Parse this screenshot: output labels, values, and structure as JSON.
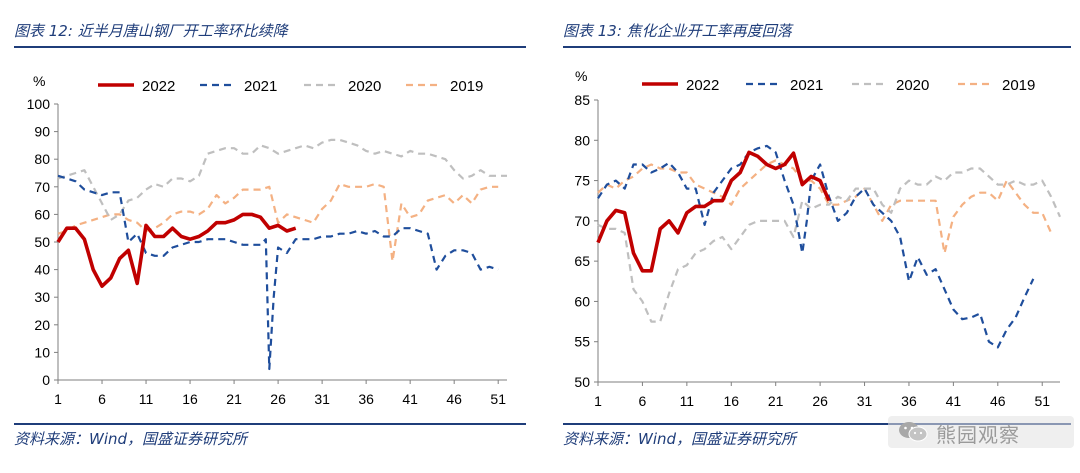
{
  "panels": [
    {
      "title": "图表 12:  近半月唐山钢厂开工率环比续降",
      "source": "资料来源：Wind，国盛证券研究所"
    },
    {
      "title": "图表 13:  焦化企业开工率再度回落",
      "source": "资料来源：Wind，国盛证券研究所"
    }
  ],
  "watermark": {
    "text": "熊园观察",
    "icon": "wechat-icon"
  },
  "colors": {
    "s2022": "#c00000",
    "s2021": "#1f4e9c",
    "s2020": "#bfbfbf",
    "s2019": "#f4b183",
    "accent": "#1f3d7a"
  },
  "chart_data": [
    {
      "type": "line",
      "ylabel": "%",
      "ylim": [
        0,
        100
      ],
      "yticks": [
        0,
        10,
        20,
        30,
        40,
        50,
        60,
        70,
        80,
        90,
        100
      ],
      "xlim": [
        1,
        52
      ],
      "xticks": [
        1,
        6,
        11,
        16,
        21,
        26,
        31,
        36,
        41,
        46,
        51
      ],
      "legend": "top",
      "series": [
        {
          "name": "2022",
          "style": "solid",
          "x": [
            1,
            2,
            3,
            4,
            5,
            6,
            7,
            8,
            9,
            10,
            11,
            12,
            13,
            14,
            15,
            16,
            17,
            18,
            19,
            20,
            21,
            22,
            23,
            24,
            25,
            26,
            27,
            28
          ],
          "values": [
            50,
            55,
            55,
            51,
            40,
            34,
            37,
            44,
            47,
            35,
            56,
            52,
            52,
            55,
            52,
            51,
            52,
            54,
            57,
            57,
            58,
            60,
            60,
            59,
            55,
            56,
            54,
            55
          ]
        },
        {
          "name": "2021",
          "style": "dashed",
          "x": [
            1,
            2,
            3,
            4,
            5,
            6,
            7,
            8,
            9,
            10,
            11,
            12,
            13,
            14,
            15,
            16,
            17,
            18,
            19,
            20,
            21,
            22,
            23,
            24,
            24.6,
            25,
            25.5,
            26,
            27,
            28,
            29,
            30,
            31,
            32,
            33,
            34,
            35,
            36,
            37,
            38,
            39,
            40,
            41,
            42,
            43,
            44,
            45,
            46,
            47,
            48,
            49,
            50,
            51
          ],
          "values": [
            74,
            73,
            72,
            69,
            68,
            67,
            68,
            68,
            50,
            53,
            46,
            45,
            45,
            48,
            49,
            50,
            50,
            51,
            51,
            51,
            50,
            49,
            49,
            49,
            51,
            4,
            30,
            48,
            46,
            51,
            51,
            51,
            52,
            52,
            53,
            53,
            54,
            53,
            54,
            52,
            52,
            55,
            55,
            54,
            53,
            40,
            45,
            47,
            47,
            46,
            40,
            41,
            40
          ]
        },
        {
          "name": "2020",
          "style": "dashed",
          "x": [
            1,
            2,
            3,
            4,
            5,
            6,
            7,
            8,
            9,
            10,
            11,
            12,
            13,
            14,
            15,
            16,
            17,
            18,
            19,
            20,
            21,
            22,
            23,
            24,
            25,
            26,
            27,
            28,
            29,
            30,
            31,
            32,
            33,
            34,
            35,
            36,
            37,
            38,
            39,
            40,
            41,
            42,
            43,
            44,
            45,
            46,
            47,
            48,
            49,
            50,
            51,
            52
          ],
          "values": [
            73,
            74,
            75,
            76,
            70,
            64,
            58,
            60,
            65,
            66,
            69,
            71,
            70,
            73,
            73,
            72,
            74,
            82,
            83,
            84,
            84,
            82,
            82,
            85,
            84,
            82,
            83,
            84,
            85,
            84,
            86,
            87,
            87,
            86,
            85,
            83,
            82,
            83,
            82,
            81,
            83,
            82,
            82,
            81,
            80,
            76,
            73,
            74,
            76,
            74,
            74,
            74
          ]
        },
        {
          "name": "2019",
          "style": "dashed",
          "x": [
            1,
            2,
            3,
            4,
            5,
            6,
            7,
            8,
            9,
            10,
            11,
            12,
            13,
            14,
            15,
            16,
            17,
            18,
            19,
            20,
            21,
            22,
            23,
            24,
            25,
            26,
            27,
            28,
            29,
            30,
            31,
            32,
            33,
            34,
            35,
            36,
            37,
            38,
            39,
            40,
            41,
            42,
            43,
            44,
            45,
            46,
            47,
            48,
            49,
            50,
            51
          ],
          "values": [
            53,
            54,
            56,
            57,
            58,
            59,
            60,
            60,
            58,
            57,
            54,
            55,
            57,
            60,
            61,
            61,
            60,
            62,
            67,
            64,
            66,
            69,
            69,
            69,
            70,
            57,
            60,
            59,
            58,
            57,
            62,
            65,
            71,
            70,
            70,
            70,
            71,
            70,
            43,
            64,
            59,
            60,
            65,
            66,
            67,
            64,
            67,
            64,
            69,
            70,
            70
          ]
        }
      ]
    },
    {
      "type": "line",
      "ylabel": "%",
      "ylim": [
        50,
        85
      ],
      "yticks": [
        50,
        55,
        60,
        65,
        70,
        75,
        80,
        85
      ],
      "xlim": [
        1,
        53
      ],
      "xticks": [
        1,
        6,
        11,
        16,
        21,
        26,
        31,
        36,
        41,
        46,
        51
      ],
      "legend": "top",
      "series": [
        {
          "name": "2022",
          "style": "solid",
          "x": [
            1,
            2,
            3,
            4,
            5,
            6,
            7,
            8,
            9,
            10,
            11,
            12,
            13,
            14,
            15,
            16,
            17,
            18,
            19,
            20,
            21,
            22,
            23,
            24,
            25,
            26,
            27
          ],
          "values": [
            67.3,
            70,
            71.3,
            71,
            66,
            63.8,
            63.8,
            69,
            70,
            68.5,
            71,
            71.8,
            71.8,
            72.5,
            72.5,
            75,
            76,
            78.5,
            78,
            77,
            76.5,
            77,
            78.4,
            74.5,
            75.5,
            75,
            72.5
          ]
        },
        {
          "name": "2021",
          "style": "dashed",
          "x": [
            1,
            2,
            3,
            4,
            5,
            6,
            7,
            8,
            9,
            10,
            11,
            12,
            13,
            14,
            15,
            16,
            17,
            18,
            19,
            20,
            21,
            22,
            23,
            24,
            24.5,
            25,
            26,
            27,
            28,
            29,
            30,
            31,
            32,
            33,
            34,
            35,
            36,
            37,
            38,
            39,
            40,
            41,
            42,
            43,
            44,
            45,
            46,
            47,
            48,
            49,
            50
          ],
          "values": [
            72.8,
            74.5,
            75,
            74,
            77,
            77,
            76,
            76.5,
            77.2,
            76,
            74,
            74,
            69.5,
            73.5,
            75,
            76.5,
            77,
            78.5,
            79,
            79.3,
            78.5,
            75,
            72,
            66,
            70,
            75,
            77,
            73,
            70,
            71,
            73,
            74,
            72,
            71,
            70,
            68,
            62.5,
            65.5,
            63.3,
            64,
            61.5,
            59,
            57.8,
            58,
            58.5,
            55,
            54.3,
            56.5,
            58,
            60.5,
            62.8
          ]
        },
        {
          "name": "2020",
          "style": "dashed",
          "x": [
            1,
            2,
            3,
            4,
            5,
            6,
            7,
            8,
            9,
            10,
            11,
            12,
            13,
            14,
            15,
            16,
            17,
            18,
            19,
            20,
            21,
            22,
            23,
            24,
            25,
            26,
            27,
            28,
            29,
            30,
            31,
            32,
            33,
            34,
            35,
            36,
            37,
            38,
            39,
            40,
            41,
            42,
            43,
            44,
            45,
            46,
            47,
            48,
            49,
            50,
            51,
            52,
            53
          ],
          "values": [
            69.5,
            69,
            69,
            68.5,
            61.5,
            60,
            57.5,
            57.5,
            61,
            64,
            64.5,
            66,
            66.5,
            67.5,
            68,
            66.5,
            68,
            69.5,
            70,
            70,
            70,
            70,
            68,
            72.5,
            71.5,
            72,
            72,
            73,
            72.5,
            74,
            74,
            74,
            72,
            71,
            74,
            75,
            74.5,
            74.5,
            75.5,
            75,
            76,
            76,
            76.5,
            76.5,
            75.5,
            74.5,
            74.5,
            75,
            74.5,
            74.5,
            75,
            73,
            70.5
          ]
        },
        {
          "name": "2019",
          "style": "dashed",
          "x": [
            1,
            2,
            3,
            4,
            5,
            6,
            7,
            8,
            9,
            10,
            11,
            12,
            13,
            14,
            15,
            16,
            17,
            18,
            19,
            20,
            21,
            22,
            23,
            24,
            25,
            26,
            27,
            28,
            29,
            30,
            31,
            32,
            33,
            34,
            35,
            36,
            37,
            38,
            39,
            40,
            41,
            42,
            43,
            44,
            45,
            46,
            47,
            48,
            49,
            50,
            51,
            52
          ],
          "values": [
            73.5,
            74.5,
            74,
            75,
            75.5,
            76.5,
            77,
            76.5,
            76.5,
            76,
            76,
            74.5,
            74,
            73.5,
            73,
            72,
            74,
            75,
            76,
            77,
            77.5,
            77,
            76.5,
            75,
            75,
            74,
            72,
            72,
            72.5,
            73,
            74,
            72,
            70,
            72,
            72.5,
            72.5,
            72.5,
            72.5,
            72.5,
            66,
            70.5,
            72,
            73,
            73.5,
            73.5,
            72.5,
            75,
            73.5,
            72,
            71,
            71,
            68.5
          ]
        }
      ]
    }
  ]
}
